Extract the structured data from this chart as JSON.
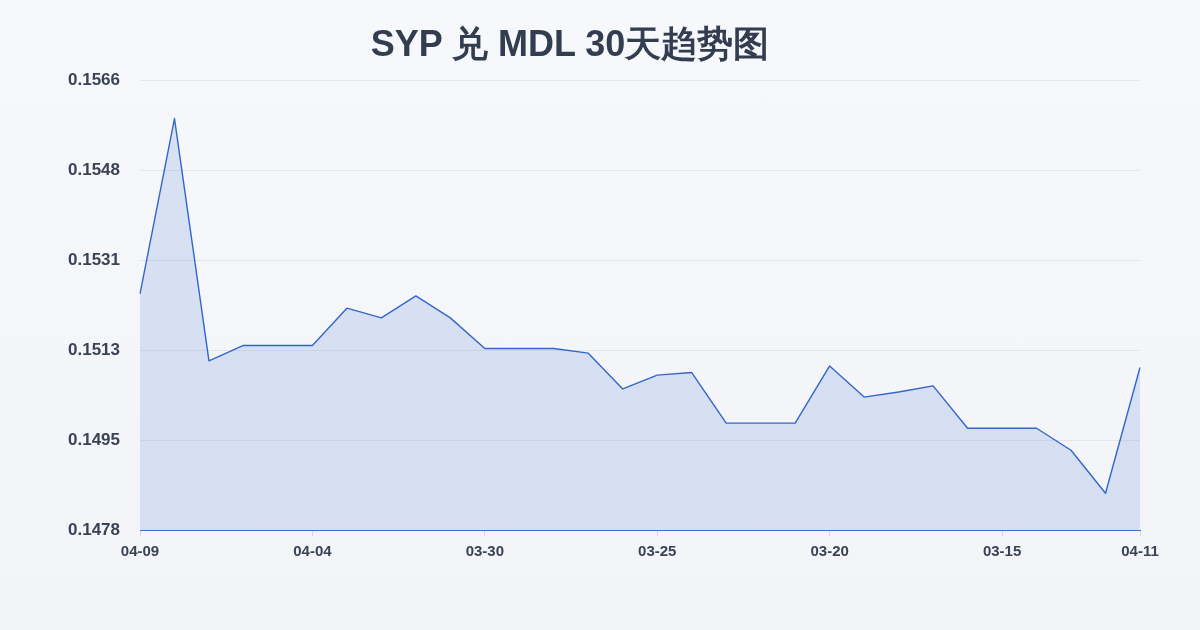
{
  "chart_data": {
    "type": "area",
    "title": "SYP 兑 MDL 30天趋势图",
    "categories": [
      "04-09",
      null,
      null,
      null,
      null,
      "04-04",
      null,
      null,
      null,
      null,
      "03-30",
      null,
      null,
      null,
      null,
      "03-25",
      null,
      null,
      null,
      null,
      "03-20",
      null,
      null,
      null,
      null,
      "03-15",
      null,
      null,
      null,
      "04-11"
    ],
    "series": [
      {
        "color": "#3366cc",
        "values": [
          0.1524,
          0.15583,
          0.15109,
          0.15139,
          0.15139,
          0.15139,
          0.15212,
          0.15193,
          0.15236,
          0.15193,
          0.15133,
          0.15133,
          0.15133,
          0.15124,
          0.15054,
          0.15081,
          0.15086,
          0.14987,
          0.14987,
          0.14987,
          0.15099,
          0.15038,
          0.15048,
          0.1506,
          0.14977,
          0.14977,
          0.14977,
          0.14934,
          0.1485,
          0.15096
        ]
      }
    ],
    "ylim": [
      0.14778,
      0.15658
    ],
    "yticks": [
      {
        "value": 0.14778,
        "label": "0.1478"
      },
      {
        "value": 0.14954,
        "label": "0.1495"
      },
      {
        "value": 0.1513,
        "label": "0.1513"
      },
      {
        "value": 0.15306,
        "label": "0.1531"
      },
      {
        "value": 0.15482,
        "label": "0.1548"
      },
      {
        "value": 0.15658,
        "label": "0.1566"
      }
    ],
    "grid": "y",
    "legend": false,
    "marker": "none",
    "line_style": "solid"
  }
}
